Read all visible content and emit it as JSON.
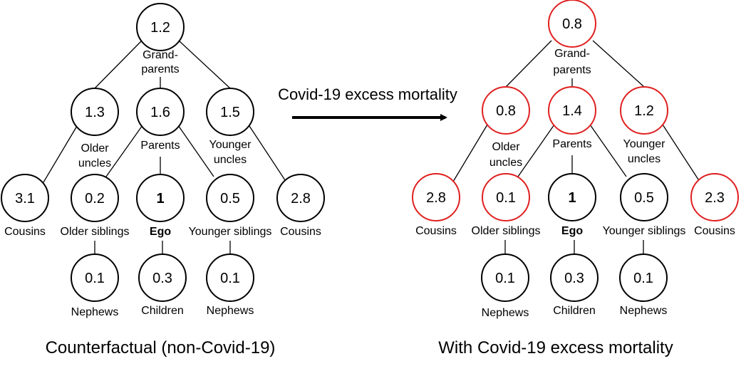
{
  "colors": {
    "unchanged": "#000000",
    "changed": "#e02020"
  },
  "arrow_label": "Covid-19 excess mortality",
  "panels": [
    {
      "caption": "Counterfactual (non-Covid-19)",
      "nodes": [
        {
          "id": "grandparents",
          "value": "1.2",
          "label": [
            "Grand-",
            "parents"
          ],
          "changed": false
        },
        {
          "id": "older-uncles",
          "value": "1.3",
          "label": [
            "Older",
            "uncles"
          ],
          "changed": false
        },
        {
          "id": "parents",
          "value": "1.6",
          "label": [
            "Parents"
          ],
          "changed": false
        },
        {
          "id": "younger-uncles",
          "value": "1.5",
          "label": [
            "Younger",
            "uncles"
          ],
          "changed": false
        },
        {
          "id": "cousins-left",
          "value": "3.1",
          "label": [
            "Cousins"
          ],
          "changed": false
        },
        {
          "id": "older-siblings",
          "value": "0.2",
          "label": [
            "Older siblings"
          ],
          "changed": false
        },
        {
          "id": "ego",
          "value": "1",
          "label": [
            "Ego"
          ],
          "changed": false,
          "bold": true
        },
        {
          "id": "younger-siblings",
          "value": "0.5",
          "label": [
            "Younger siblings"
          ],
          "changed": false
        },
        {
          "id": "cousins-right",
          "value": "2.8",
          "label": [
            "Cousins"
          ],
          "changed": false
        },
        {
          "id": "nephews-left",
          "value": "0.1",
          "label": [
            "Nephews"
          ],
          "changed": false
        },
        {
          "id": "children",
          "value": "0.3",
          "label": [
            "Children"
          ],
          "changed": false
        },
        {
          "id": "nephews-right",
          "value": "0.1",
          "label": [
            "Nephews"
          ],
          "changed": false
        }
      ]
    },
    {
      "caption": "With Covid-19 excess mortality",
      "nodes": [
        {
          "id": "grandparents",
          "value": "0.8",
          "label": [
            "Grand-",
            "parents"
          ],
          "changed": true
        },
        {
          "id": "older-uncles",
          "value": "0.8",
          "label": [
            "Older",
            "uncles"
          ],
          "changed": true
        },
        {
          "id": "parents",
          "value": "1.4",
          "label": [
            "Parents"
          ],
          "changed": true
        },
        {
          "id": "younger-uncles",
          "value": "1.2",
          "label": [
            "Younger",
            "uncles"
          ],
          "changed": true
        },
        {
          "id": "cousins-left",
          "value": "2.8",
          "label": [
            "Cousins"
          ],
          "changed": true
        },
        {
          "id": "older-siblings",
          "value": "0.1",
          "label": [
            "Older siblings"
          ],
          "changed": true
        },
        {
          "id": "ego",
          "value": "1",
          "label": [
            "Ego"
          ],
          "changed": false,
          "bold": true
        },
        {
          "id": "younger-siblings",
          "value": "0.5",
          "label": [
            "Younger siblings"
          ],
          "changed": false
        },
        {
          "id": "cousins-right",
          "value": "2.3",
          "label": [
            "Cousins"
          ],
          "changed": true
        },
        {
          "id": "nephews-left",
          "value": "0.1",
          "label": [
            "Nephews"
          ],
          "changed": false
        },
        {
          "id": "children",
          "value": "0.3",
          "label": [
            "Children"
          ],
          "changed": false
        },
        {
          "id": "nephews-right",
          "value": "0.1",
          "label": [
            "Nephews"
          ],
          "changed": false
        }
      ]
    }
  ]
}
